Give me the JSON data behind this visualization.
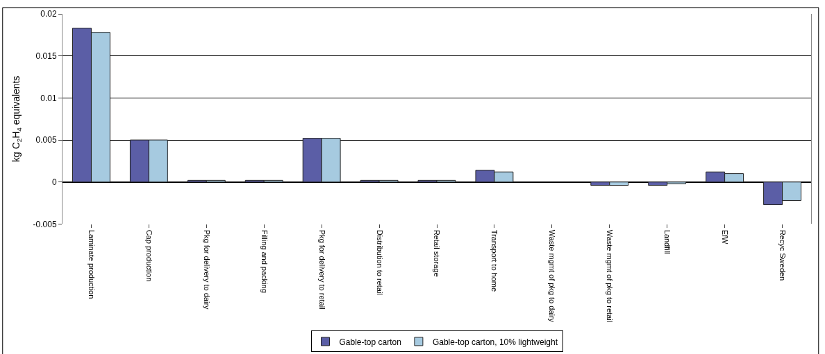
{
  "chart_data": {
    "type": "bar",
    "ylabel": "kg C$_{2}$H$_{4}$ equivalents",
    "categories": [
      "Laminate production",
      "Cap production",
      "Pkg for delivery to dairy",
      "Filling and packing",
      "Pkg for delivery to retail",
      "Distribution to retail",
      "Retail storage",
      "Transport to home",
      "Waste mgmt of pkg to dairy",
      "Waste mgmt of pkg to retail",
      "Landfill",
      "EfW",
      "Recyc Sweden"
    ],
    "series": [
      {
        "name": "Gable-top carton",
        "color": "#5b5ea6",
        "values": [
          0.0183,
          0.005,
          0.0002,
          0.0002,
          0.0052,
          0.0002,
          0.0002,
          0.0014,
          0,
          -0.0004,
          -0.0004,
          0.0012,
          -0.0027
        ]
      },
      {
        "name": "Gable-top carton, 10% lightweight",
        "color": "#a6cae0",
        "values": [
          0.0178,
          0.005,
          0.0002,
          0.0002,
          0.0052,
          0.0002,
          0.0002,
          0.0012,
          0,
          -0.0004,
          -0.0002,
          0.001,
          -0.0022
        ]
      }
    ],
    "ylim": [
      -0.005,
      0.02
    ],
    "yticks": [
      -0.005,
      0,
      0.005,
      0.01,
      0.015,
      0.02
    ],
    "grid": "y",
    "legend": "bottom"
  }
}
